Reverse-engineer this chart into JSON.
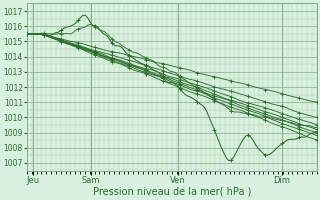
{
  "xlabel": "Pression niveau de la mer( hPa )",
  "bg_color": "#d8f0e0",
  "plot_bg_color": "#d8f0e0",
  "grid_color_minor": "#a8cca8",
  "grid_color_major": "#88aa88",
  "line_color": "#2d6e2d",
  "ylim": [
    1006.5,
    1017.5
  ],
  "yticks": [
    1007,
    1008,
    1009,
    1010,
    1011,
    1012,
    1013,
    1014,
    1015,
    1016,
    1017
  ],
  "xlim": [
    0,
    1
  ],
  "x_tick_pos": [
    0.02,
    0.22,
    0.52,
    0.88
  ],
  "x_tick_labels": [
    "Jeu",
    "Sam",
    "Ven",
    "Dim"
  ]
}
